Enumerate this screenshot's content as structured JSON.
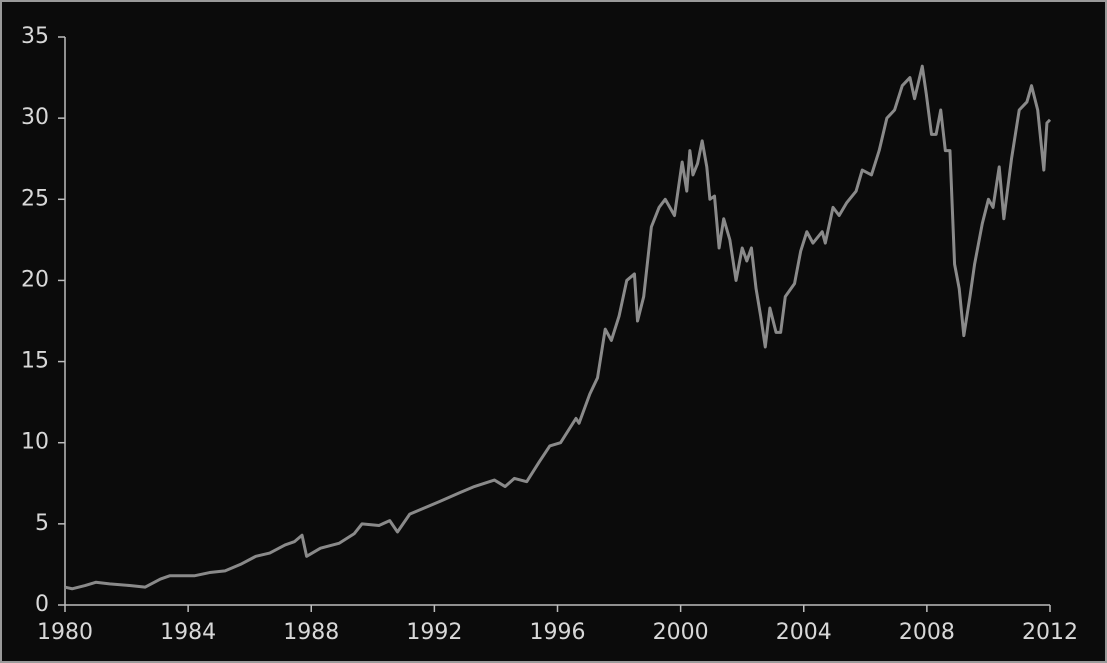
{
  "chart_data": {
    "type": "line",
    "x": [
      1980,
      1980.23,
      1980.65,
      1981,
      1981.45,
      1982.1,
      1982.6,
      1983.1,
      1983.4,
      1984.2,
      1984.7,
      1985.2,
      1985.7,
      1986.2,
      1986.65,
      1987.15,
      1987.45,
      1987.7,
      1987.85,
      1988.3,
      1988.9,
      1989.4,
      1989.65,
      1990.2,
      1990.55,
      1990.8,
      1991.2,
      1991.7,
      1992.2,
      1992.8,
      1993.3,
      1993.95,
      1994.3,
      1994.6,
      1995,
      1995.4,
      1995.75,
      1996.1,
      1996.6,
      1996.7,
      1997.05,
      1997.3,
      1997.55,
      1997.75,
      1998,
      1998.25,
      1998.5,
      1998.6,
      1998.8,
      1999.05,
      1999.3,
      1999.5,
      1999.8,
      2000.05,
      2000.2,
      2000.3,
      2000.4,
      2000.55,
      2000.7,
      2000.85,
      2000.95,
      2001.1,
      2001.25,
      2001.4,
      2001.6,
      2001.8,
      2002,
      2002.15,
      2002.3,
      2002.45,
      2002.6,
      2002.75,
      2002.9,
      2003.1,
      2003.25,
      2003.4,
      2003.7,
      2003.9,
      2004.1,
      2004.3,
      2004.6,
      2004.7,
      2004.95,
      2005.15,
      2005.4,
      2005.7,
      2005.9,
      2006.2,
      2006.45,
      2006.7,
      2006.95,
      2007.2,
      2007.45,
      2007.6,
      2007.85,
      2007.98,
      2008.15,
      2008.3,
      2008.45,
      2008.6,
      2008.75,
      2008.9,
      2009.05,
      2009.2,
      2009.4,
      2009.55,
      2009.8,
      2010,
      2010.15,
      2010.35,
      2010.5,
      2010.75,
      2011,
      2011.25,
      2011.4,
      2011.6,
      2011.8,
      2011.9,
      2012
    ],
    "series": [
      {
        "color": "#8a8a8a",
        "values": [
          1.1,
          1.0,
          1.2,
          1.4,
          1.3,
          1.2,
          1.1,
          1.6,
          1.8,
          1.8,
          2.0,
          2.1,
          2.5,
          3.0,
          3.2,
          3.7,
          3.9,
          4.3,
          3.0,
          3.5,
          3.8,
          4.4,
          5.0,
          4.9,
          5.2,
          4.5,
          5.6,
          6.0,
          6.4,
          6.9,
          7.3,
          7.7,
          7.3,
          7.8,
          7.6,
          8.8,
          9.8,
          10.0,
          11.5,
          11.2,
          13.0,
          14.0,
          17.0,
          16.3,
          17.8,
          20.0,
          20.4,
          17.5,
          19.0,
          23.3,
          24.5,
          25.0,
          24.0,
          27.3,
          25.5,
          28.0,
          26.5,
          27.2,
          28.6,
          27.0,
          25.0,
          25.2,
          22.0,
          23.8,
          22.5,
          20.0,
          22.0,
          21.2,
          22.0,
          19.5,
          17.8,
          15.9,
          18.3,
          16.8,
          16.8,
          19.0,
          19.8,
          21.8,
          23.0,
          22.3,
          23.0,
          22.3,
          24.5,
          24.0,
          24.8,
          25.5,
          26.8,
          26.5,
          28.0,
          30.0,
          30.5,
          32.0,
          32.5,
          31.2,
          33.2,
          31.5,
          29.0,
          29.0,
          30.5,
          28.0,
          28.0,
          21.0,
          19.5,
          16.6,
          19.0,
          21.0,
          23.5,
          25.0,
          24.5,
          27.0,
          23.8,
          27.5,
          30.5,
          31.0,
          32.0,
          30.5,
          26.8,
          29.7,
          29.9
        ]
      }
    ],
    "xlim": [
      1980,
      2012
    ],
    "xticks": [
      1980,
      1984,
      1988,
      1992,
      1996,
      2000,
      2004,
      2008,
      2012
    ],
    "ylim": [
      0,
      35
    ],
    "yticks": [
      0,
      5,
      10,
      15,
      20,
      25,
      30,
      35
    ]
  }
}
